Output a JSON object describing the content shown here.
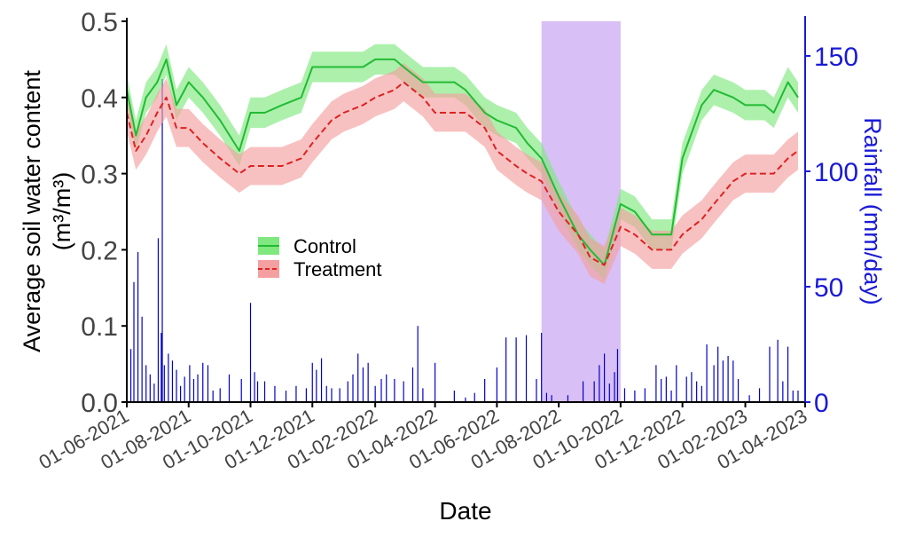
{
  "chart_data": {
    "type": "line",
    "title": "",
    "xlabel": "Date",
    "ylabel_lines": [
      "Average soil water content",
      "(m³/m³)"
    ],
    "y2label": "Rainfall (mm/day)",
    "xlim": [
      "2021-06-01",
      "2023-04-01"
    ],
    "ylim": [
      0,
      0.5
    ],
    "y2lim": [
      0,
      165
    ],
    "x_ticks": [
      "2021-06-01",
      "2021-08-01",
      "2021-10-01",
      "2021-12-01",
      "2022-02-01",
      "2022-04-01",
      "2022-06-01",
      "2022-08-01",
      "2022-10-01",
      "2022-12-01",
      "2023-02-01",
      "2023-04-01"
    ],
    "x_tick_labels": [
      "01-06-2021",
      "01-08-2021",
      "01-10-2021",
      "01-12-2021",
      "01-02-2022",
      "01-04-2022",
      "01-06-2022",
      "01-08-2022",
      "01-10-2022",
      "01-12-2022",
      "01-02-2023",
      "01-04-2023"
    ],
    "y_ticks": [
      0.0,
      0.1,
      0.2,
      0.3,
      0.4,
      0.5
    ],
    "y_tick_labels": [
      "0.0",
      "0.1",
      "0.2",
      "0.3",
      "0.4",
      "0.5"
    ],
    "y2_ticks": [
      0,
      50,
      100,
      150
    ],
    "y2_tick_labels": [
      "0",
      "50",
      "100",
      "150"
    ],
    "grid": false,
    "legend_position": "center-left",
    "colors": {
      "control": "#22bb33",
      "control_band": "#7fe87f",
      "treatment": "#dd2222",
      "treatment_band": "#f4a0a0",
      "rainfall": "#0000cc",
      "right_axis": "#1a1ad6",
      "shade": "#d8bff5"
    },
    "shaded_period": [
      "2022-07-15",
      "2022-10-01"
    ],
    "series": [
      {
        "name": "Control",
        "style": "solid",
        "x": [
          "2021-06-01",
          "2021-06-10",
          "2021-06-20",
          "2021-07-01",
          "2021-07-10",
          "2021-07-20",
          "2021-08-01",
          "2021-08-15",
          "2021-09-01",
          "2021-09-20",
          "2021-10-01",
          "2021-10-15",
          "2021-11-01",
          "2021-11-20",
          "2021-12-01",
          "2021-12-20",
          "2022-01-01",
          "2022-01-20",
          "2022-02-01",
          "2022-02-20",
          "2022-03-01",
          "2022-03-20",
          "2022-04-01",
          "2022-04-20",
          "2022-05-01",
          "2022-05-20",
          "2022-06-01",
          "2022-06-20",
          "2022-07-01",
          "2022-07-15",
          "2022-08-01",
          "2022-08-20",
          "2022-09-01",
          "2022-09-15",
          "2022-10-01",
          "2022-10-15",
          "2022-11-01",
          "2022-11-20",
          "2022-12-01",
          "2022-12-20",
          "2023-01-01",
          "2023-01-20",
          "2023-02-01",
          "2023-02-20",
          "2023-03-01",
          "2023-03-15",
          "2023-03-25"
        ],
        "values": [
          0.41,
          0.35,
          0.4,
          0.42,
          0.45,
          0.39,
          0.42,
          0.4,
          0.37,
          0.33,
          0.38,
          0.38,
          0.39,
          0.4,
          0.44,
          0.44,
          0.44,
          0.44,
          0.45,
          0.45,
          0.44,
          0.42,
          0.42,
          0.42,
          0.41,
          0.38,
          0.37,
          0.36,
          0.34,
          0.32,
          0.27,
          0.22,
          0.2,
          0.18,
          0.26,
          0.25,
          0.22,
          0.22,
          0.32,
          0.39,
          0.41,
          0.4,
          0.39,
          0.39,
          0.38,
          0.42,
          0.4
        ],
        "band_halfwidth": 0.02
      },
      {
        "name": "Treatment",
        "style": "dashed",
        "x": [
          "2021-06-01",
          "2021-06-10",
          "2021-06-20",
          "2021-07-01",
          "2021-07-10",
          "2021-07-20",
          "2021-08-01",
          "2021-08-15",
          "2021-09-01",
          "2021-09-20",
          "2021-10-01",
          "2021-10-15",
          "2021-11-01",
          "2021-11-20",
          "2021-12-01",
          "2021-12-20",
          "2022-01-01",
          "2022-01-20",
          "2022-02-01",
          "2022-02-20",
          "2022-03-01",
          "2022-03-20",
          "2022-04-01",
          "2022-04-20",
          "2022-05-01",
          "2022-05-20",
          "2022-06-01",
          "2022-06-20",
          "2022-07-01",
          "2022-07-15",
          "2022-08-01",
          "2022-08-20",
          "2022-09-01",
          "2022-09-15",
          "2022-10-01",
          "2022-10-15",
          "2022-11-01",
          "2022-11-20",
          "2022-12-01",
          "2022-12-20",
          "2023-01-01",
          "2023-01-20",
          "2023-02-01",
          "2023-02-20",
          "2023-03-01",
          "2023-03-15",
          "2023-03-25"
        ],
        "values": [
          0.38,
          0.33,
          0.35,
          0.38,
          0.4,
          0.36,
          0.36,
          0.34,
          0.32,
          0.3,
          0.31,
          0.31,
          0.31,
          0.32,
          0.34,
          0.37,
          0.38,
          0.39,
          0.4,
          0.41,
          0.42,
          0.4,
          0.38,
          0.38,
          0.38,
          0.36,
          0.33,
          0.31,
          0.3,
          0.29,
          0.25,
          0.22,
          0.19,
          0.18,
          0.23,
          0.22,
          0.2,
          0.2,
          0.22,
          0.24,
          0.26,
          0.29,
          0.3,
          0.3,
          0.3,
          0.32,
          0.33
        ],
        "band_halfwidth": 0.025
      }
    ],
    "rainfall": {
      "name": "Rainfall",
      "axis": "right",
      "x": [
        "2021-06-05",
        "2021-06-08",
        "2021-06-12",
        "2021-06-16",
        "2021-06-20",
        "2021-06-24",
        "2021-06-28",
        "2021-07-02",
        "2021-07-05",
        "2021-07-06",
        "2021-07-08",
        "2021-07-12",
        "2021-07-16",
        "2021-07-20",
        "2021-07-24",
        "2021-07-28",
        "2021-08-02",
        "2021-08-06",
        "2021-08-10",
        "2021-08-15",
        "2021-08-20",
        "2021-08-25",
        "2021-09-01",
        "2021-09-10",
        "2021-09-22",
        "2021-10-01",
        "2021-10-05",
        "2021-10-08",
        "2021-10-15",
        "2021-10-25",
        "2021-11-05",
        "2021-11-15",
        "2021-11-25",
        "2021-12-01",
        "2021-12-05",
        "2021-12-10",
        "2021-12-15",
        "2021-12-20",
        "2021-12-28",
        "2022-01-05",
        "2022-01-10",
        "2022-01-15",
        "2022-01-20",
        "2022-01-25",
        "2022-02-01",
        "2022-02-07",
        "2022-02-12",
        "2022-02-20",
        "2022-03-01",
        "2022-03-10",
        "2022-03-15",
        "2022-03-20",
        "2022-04-01",
        "2022-04-20",
        "2022-05-01",
        "2022-05-10",
        "2022-05-20",
        "2022-06-01",
        "2022-06-10",
        "2022-06-20",
        "2022-06-30",
        "2022-07-10",
        "2022-07-15",
        "2022-07-20",
        "2022-07-25",
        "2022-08-10",
        "2022-08-25",
        "2022-09-05",
        "2022-09-10",
        "2022-09-15",
        "2022-09-20",
        "2022-09-25",
        "2022-09-28",
        "2022-10-05",
        "2022-10-15",
        "2022-10-25",
        "2022-11-05",
        "2022-11-10",
        "2022-11-15",
        "2022-11-20",
        "2022-11-25",
        "2022-12-05",
        "2022-12-10",
        "2022-12-15",
        "2022-12-20",
        "2022-12-25",
        "2023-01-01",
        "2023-01-05",
        "2023-01-10",
        "2023-01-15",
        "2023-01-20",
        "2023-01-25",
        "2023-02-05",
        "2023-02-15",
        "2023-02-25",
        "2023-03-05",
        "2023-03-10",
        "2023-03-15",
        "2023-03-20",
        "2023-03-25"
      ],
      "values": [
        23,
        52,
        65,
        37,
        16,
        12,
        8,
        71,
        30,
        140,
        16,
        21,
        18,
        14,
        7,
        11,
        16,
        10,
        12,
        17,
        16,
        5,
        6,
        12,
        10,
        43,
        13,
        9,
        9,
        7,
        5,
        7,
        6,
        17,
        14,
        19,
        7,
        6,
        6,
        9,
        12,
        21,
        15,
        17,
        7,
        10,
        12,
        10,
        9,
        15,
        33,
        6,
        17,
        5,
        2,
        4,
        10,
        15,
        28,
        28,
        29,
        10,
        30,
        4,
        3,
        3,
        9,
        9,
        16,
        21,
        8,
        13,
        23,
        6,
        5,
        6,
        16,
        10,
        11,
        5,
        16,
        11,
        13,
        9,
        7,
        25,
        16,
        24,
        18,
        20,
        18,
        10,
        3,
        6,
        24,
        27,
        9,
        24,
        5,
        5
      ]
    }
  }
}
